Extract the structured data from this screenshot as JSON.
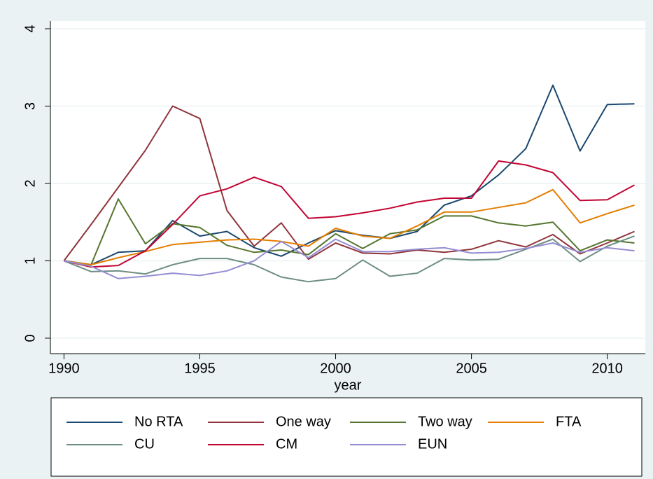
{
  "chart_data": {
    "type": "line",
    "x_label": "year",
    "x": [
      1990,
      1991,
      1992,
      1993,
      1994,
      1995,
      1996,
      1997,
      1998,
      1999,
      2000,
      2001,
      2002,
      2003,
      2004,
      2005,
      2006,
      2007,
      2008,
      2009,
      2010,
      2011
    ],
    "xlim": [
      1989.5,
      2011.4
    ],
    "xticks": [
      1990,
      1995,
      2000,
      2005,
      2010
    ],
    "ylim": [
      -0.2,
      4.1
    ],
    "yticks": [
      0,
      1,
      2,
      3,
      4
    ],
    "grid": true,
    "series": [
      {
        "name": "No RTA",
        "color": "#1a476f",
        "values": [
          1,
          0.95,
          1.11,
          1.13,
          1.52,
          1.32,
          1.38,
          1.17,
          1.06,
          1.23,
          1.39,
          1.33,
          1.29,
          1.38,
          1.72,
          1.84,
          2.11,
          2.45,
          3.27,
          2.42,
          3.02,
          3.03
        ]
      },
      {
        "name": "One way",
        "color": "#90353b",
        "values": [
          1,
          1.47,
          1.95,
          2.43,
          3.0,
          2.84,
          1.65,
          1.19,
          1.49,
          1.02,
          1.23,
          1.1,
          1.09,
          1.14,
          1.11,
          1.15,
          1.26,
          1.18,
          1.34,
          1.09,
          1.23,
          1.38
        ]
      },
      {
        "name": "Two way",
        "color": "#55752f",
        "values": [
          1,
          0.95,
          1.8,
          1.22,
          1.48,
          1.43,
          1.2,
          1.11,
          1.14,
          1.08,
          1.35,
          1.16,
          1.35,
          1.4,
          1.58,
          1.58,
          1.49,
          1.45,
          1.5,
          1.13,
          1.27,
          1.23
        ]
      },
      {
        "name": "FTA",
        "color": "#e37e00",
        "values": [
          1,
          0.95,
          1.04,
          1.12,
          1.21,
          1.24,
          1.27,
          1.28,
          1.25,
          1.19,
          1.42,
          1.32,
          1.29,
          1.45,
          1.63,
          1.63,
          1.69,
          1.75,
          1.92,
          1.49,
          1.61,
          1.72
        ]
      },
      {
        "name": "CU",
        "color": "#6e8e84",
        "values": [
          1,
          0.86,
          0.87,
          0.83,
          0.95,
          1.03,
          1.03,
          0.95,
          0.79,
          0.73,
          0.77,
          1.01,
          0.8,
          0.84,
          1.03,
          1.01,
          1.02,
          1.15,
          1.28,
          0.99,
          1.19,
          1.32
        ]
      },
      {
        "name": "CM",
        "color": "#c10534",
        "values": [
          1,
          0.92,
          0.94,
          1.13,
          1.47,
          1.84,
          1.93,
          2.08,
          1.96,
          1.55,
          1.57,
          1.62,
          1.68,
          1.76,
          1.81,
          1.81,
          2.29,
          2.24,
          2.14,
          1.78,
          1.79,
          1.98
        ]
      },
      {
        "name": "EUN",
        "color": "#938dd2",
        "values": [
          1,
          0.93,
          0.77,
          0.8,
          0.84,
          0.81,
          0.87,
          1.0,
          1.25,
          1.04,
          1.28,
          1.12,
          1.12,
          1.15,
          1.17,
          1.1,
          1.11,
          1.16,
          1.23,
          1.11,
          1.17,
          1.13
        ]
      }
    ]
  }
}
